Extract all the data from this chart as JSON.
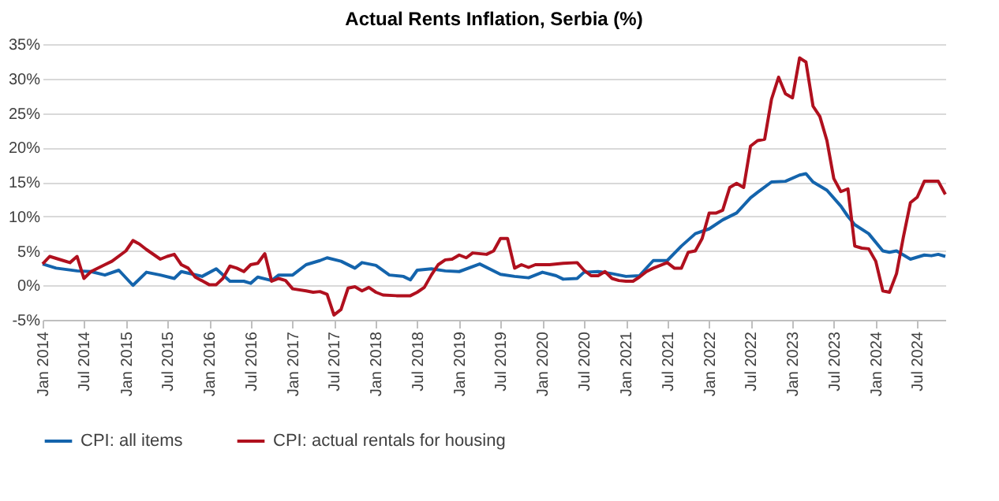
{
  "chart_data": {
    "type": "line",
    "title": "Actual Rents Inflation, Serbia (%)",
    "xlim": [
      "2014-01",
      "2024-11"
    ],
    "xticks": [
      {
        "value": "2014-01",
        "label": "Jan 2014"
      },
      {
        "value": "2014-07",
        "label": "Jul 2014"
      },
      {
        "value": "2015-01",
        "label": "Jan 2015"
      },
      {
        "value": "2015-07",
        "label": "Jul 2015"
      },
      {
        "value": "2016-01",
        "label": "Jan 2016"
      },
      {
        "value": "2016-07",
        "label": "Jul 2016"
      },
      {
        "value": "2017-01",
        "label": "Jan 2017"
      },
      {
        "value": "2017-07",
        "label": "Jul 2017"
      },
      {
        "value": "2018-01",
        "label": "Jan 2018"
      },
      {
        "value": "2018-07",
        "label": "Jul 2018"
      },
      {
        "value": "2019-01",
        "label": "Jan 2019"
      },
      {
        "value": "2019-07",
        "label": "Jul 2019"
      },
      {
        "value": "2020-01",
        "label": "Jan 2020"
      },
      {
        "value": "2020-07",
        "label": "Jul 2020"
      },
      {
        "value": "2021-01",
        "label": "Jan 2021"
      },
      {
        "value": "2021-07",
        "label": "Jul 2021"
      },
      {
        "value": "2022-01",
        "label": "Jan 2022"
      },
      {
        "value": "2022-07",
        "label": "Jul 2022"
      },
      {
        "value": "2023-01",
        "label": "Jan 2023"
      },
      {
        "value": "2023-07",
        "label": "Jul 2023"
      },
      {
        "value": "2024-01",
        "label": "Jan 2024"
      },
      {
        "value": "2024-07",
        "label": "Jul 2024"
      }
    ],
    "ylim": [
      -5,
      35
    ],
    "yticks": [
      {
        "value": -5,
        "label": "-5%"
      },
      {
        "value": 0,
        "label": "0%"
      },
      {
        "value": 5,
        "label": "5%"
      },
      {
        "value": 10,
        "label": "10%"
      },
      {
        "value": 15,
        "label": "15%"
      },
      {
        "value": 20,
        "label": "20%"
      },
      {
        "value": 25,
        "label": "25%"
      },
      {
        "value": 30,
        "label": "30%"
      },
      {
        "value": 35,
        "label": "35%"
      }
    ],
    "grid": "y",
    "legend": "bottom",
    "marker": "none",
    "line_style": "solid",
    "series": [
      {
        "name": "CPI: all items",
        "color": "#1464ac",
        "x": [
          "2014-01",
          "2014-03",
          "2014-06",
          "2014-08",
          "2014-10",
          "2014-12",
          "2015-02",
          "2015-04",
          "2015-06",
          "2015-08",
          "2015-09",
          "2015-12",
          "2016-02",
          "2016-04",
          "2016-06",
          "2016-07",
          "2016-08",
          "2016-10",
          "2016-11",
          "2017-01",
          "2017-03",
          "2017-05",
          "2017-06",
          "2017-08",
          "2017-10",
          "2017-11",
          "2018-01",
          "2018-03",
          "2018-05",
          "2018-06",
          "2018-07",
          "2018-09",
          "2018-11",
          "2019-01",
          "2019-04",
          "2019-07",
          "2019-09",
          "2019-11",
          "2020-01",
          "2020-03",
          "2020-04",
          "2020-06",
          "2020-07",
          "2020-09",
          "2020-11",
          "2021-01",
          "2021-03",
          "2021-05",
          "2021-07",
          "2021-09",
          "2021-11",
          "2022-01",
          "2022-03",
          "2022-05",
          "2022-07",
          "2022-08",
          "2022-10",
          "2022-12",
          "2023-02",
          "2023-03",
          "2023-04",
          "2023-06",
          "2023-08",
          "2023-09",
          "2023-10",
          "2023-12",
          "2024-02",
          "2024-03",
          "2024-04",
          "2024-06",
          "2024-08",
          "2024-09",
          "2024-10",
          "2024-11"
        ],
        "values": [
          3.1,
          2.5,
          2.1,
          2.0,
          1.5,
          2.2,
          0.0,
          1.9,
          1.5,
          1.0,
          2.0,
          1.3,
          2.4,
          0.6,
          0.6,
          0.3,
          1.2,
          0.7,
          1.5,
          1.5,
          3.0,
          3.6,
          4.0,
          3.5,
          2.5,
          3.3,
          2.9,
          1.5,
          1.3,
          0.8,
          2.2,
          2.4,
          2.1,
          2.0,
          3.1,
          1.6,
          1.3,
          1.1,
          1.9,
          1.4,
          0.9,
          1.0,
          1.9,
          2.0,
          1.7,
          1.3,
          1.4,
          3.6,
          3.6,
          5.7,
          7.5,
          8.2,
          9.5,
          10.5,
          12.7,
          13.5,
          15.0,
          15.1,
          16.0,
          16.2,
          15.0,
          13.8,
          11.5,
          10.0,
          8.8,
          7.5,
          5.0,
          4.8,
          5.0,
          3.8,
          4.4,
          4.3,
          4.5,
          4.2
        ]
      },
      {
        "name": "CPI: actual rentals for housing",
        "color": "#b0101e",
        "x": [
          "2014-01",
          "2014-02",
          "2014-04",
          "2014-05",
          "2014-06",
          "2014-07",
          "2014-08",
          "2014-10",
          "2014-11",
          "2015-01",
          "2015-02",
          "2015-03",
          "2015-04",
          "2015-06",
          "2015-07",
          "2015-08",
          "2015-09",
          "2015-10",
          "2015-11",
          "2016-01",
          "2016-02",
          "2016-03",
          "2016-04",
          "2016-05",
          "2016-06",
          "2016-07",
          "2016-08",
          "2016-09",
          "2016-10",
          "2016-11",
          "2016-12",
          "2017-01",
          "2017-03",
          "2017-04",
          "2017-05",
          "2017-06",
          "2017-07",
          "2017-08",
          "2017-09",
          "2017-10",
          "2017-11",
          "2017-12",
          "2018-01",
          "2018-02",
          "2018-04",
          "2018-06",
          "2018-07",
          "2018-08",
          "2018-09",
          "2018-10",
          "2018-11",
          "2018-12",
          "2019-01",
          "2019-02",
          "2019-03",
          "2019-05",
          "2019-06",
          "2019-07",
          "2019-08",
          "2019-09",
          "2019-10",
          "2019-11",
          "2019-12",
          "2020-02",
          "2020-04",
          "2020-06",
          "2020-07",
          "2020-08",
          "2020-09",
          "2020-10",
          "2020-11",
          "2020-12",
          "2021-01",
          "2021-02",
          "2021-03",
          "2021-04",
          "2021-05",
          "2021-07",
          "2021-08",
          "2021-09",
          "2021-10",
          "2021-11",
          "2021-12",
          "2022-01",
          "2022-02",
          "2022-03",
          "2022-04",
          "2022-05",
          "2022-06",
          "2022-07",
          "2022-08",
          "2022-09",
          "2022-10",
          "2022-11",
          "2022-12",
          "2023-01",
          "2023-02",
          "2023-03",
          "2023-04",
          "2023-05",
          "2023-06",
          "2023-07",
          "2023-08",
          "2023-09",
          "2023-10",
          "2023-11",
          "2023-12",
          "2024-01",
          "2024-02",
          "2024-03",
          "2024-04",
          "2024-05",
          "2024-06",
          "2024-07",
          "2024-08",
          "2024-09",
          "2024-10",
          "2024-11"
        ],
        "values": [
          3.1,
          4.2,
          3.6,
          3.3,
          4.2,
          1.0,
          2.0,
          3.0,
          3.5,
          5.0,
          6.5,
          6.0,
          5.2,
          3.8,
          4.2,
          4.5,
          3.0,
          2.5,
          1.2,
          0.1,
          0.1,
          1.0,
          2.8,
          2.5,
          2.0,
          3.0,
          3.2,
          4.6,
          0.6,
          1.0,
          0.7,
          -0.5,
          -0.8,
          -1.0,
          -0.9,
          -1.3,
          -4.3,
          -3.5,
          -0.4,
          -0.2,
          -0.8,
          -0.3,
          -1.0,
          -1.4,
          -1.5,
          -1.5,
          -1.0,
          -0.3,
          1.5,
          3.0,
          3.7,
          3.8,
          4.4,
          4.0,
          4.7,
          4.5,
          5.0,
          6.8,
          6.8,
          2.5,
          3.0,
          2.6,
          3.0,
          3.0,
          3.2,
          3.3,
          2.2,
          1.4,
          1.4,
          2.0,
          1.0,
          0.7,
          0.6,
          0.6,
          1.2,
          2.0,
          2.5,
          3.3,
          2.5,
          2.5,
          4.8,
          5.0,
          6.8,
          10.5,
          10.5,
          10.9,
          14.2,
          14.8,
          14.2,
          20.2,
          21.0,
          21.2,
          27.0,
          30.2,
          27.8,
          27.2,
          33.0,
          32.4,
          26.0,
          24.5,
          21.0,
          15.5,
          13.6,
          14.0,
          5.7,
          5.4,
          5.3,
          3.5,
          -0.8,
          -1.0,
          1.7,
          7.0,
          12.0,
          12.8,
          15.1,
          15.1,
          15.1,
          13.2
        ]
      }
    ]
  }
}
